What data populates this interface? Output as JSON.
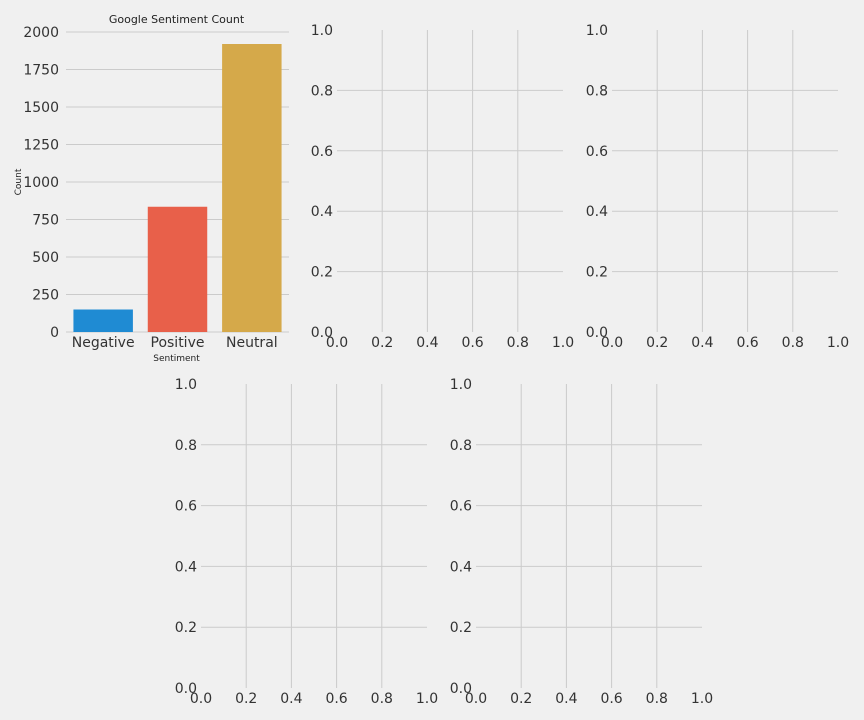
{
  "colors": {
    "background": "#f0f0f0",
    "grid": "#cbcbcb",
    "bars": [
      "#1f8bd3",
      "#e8604a",
      "#d5a94a"
    ]
  },
  "chart_data": [
    {
      "type": "bar",
      "title": "Google Sentiment Count",
      "xlabel": "Sentiment",
      "ylabel": "Count",
      "categories": [
        "Negative",
        "Positive",
        "Neutral"
      ],
      "values": [
        150,
        835,
        1920
      ],
      "ylim": [
        0,
        2000
      ],
      "yticks": [
        "0",
        "250",
        "500",
        "750",
        "1000",
        "1250",
        "1500",
        "1750",
        "2000"
      ],
      "grid": true
    },
    {
      "type": "scatter",
      "title": "",
      "xlabel": "",
      "ylabel": "",
      "xlim": [
        0,
        1
      ],
      "ylim": [
        0,
        1
      ],
      "xticks": [
        "0.0",
        "0.2",
        "0.4",
        "0.6",
        "0.8",
        "1.0"
      ],
      "yticks": [
        "0.0",
        "0.2",
        "0.4",
        "0.6",
        "0.8",
        "1.0"
      ],
      "grid": true
    },
    {
      "type": "scatter",
      "title": "",
      "xlabel": "",
      "ylabel": "",
      "xlim": [
        0,
        1
      ],
      "ylim": [
        0,
        1
      ],
      "xticks": [
        "0.0",
        "0.2",
        "0.4",
        "0.6",
        "0.8",
        "1.0"
      ],
      "yticks": [
        "0.0",
        "0.2",
        "0.4",
        "0.6",
        "0.8",
        "1.0"
      ],
      "grid": true
    },
    {
      "type": "scatter",
      "title": "",
      "xlabel": "",
      "ylabel": "",
      "xlim": [
        0,
        1
      ],
      "ylim": [
        0,
        1
      ],
      "xticks": [
        "0.0",
        "0.2",
        "0.4",
        "0.6",
        "0.8",
        "1.0"
      ],
      "yticks": [
        "0.0",
        "0.2",
        "0.4",
        "0.6",
        "0.8",
        "1.0"
      ],
      "grid": true
    },
    {
      "type": "scatter",
      "title": "",
      "xlabel": "",
      "ylabel": "",
      "xlim": [
        0,
        1
      ],
      "ylim": [
        0,
        1
      ],
      "xticks": [
        "0.0",
        "0.2",
        "0.4",
        "0.6",
        "0.8",
        "1.0"
      ],
      "yticks": [
        "0.0",
        "0.2",
        "0.4",
        "0.6",
        "0.8",
        "1.0"
      ],
      "grid": true
    }
  ]
}
